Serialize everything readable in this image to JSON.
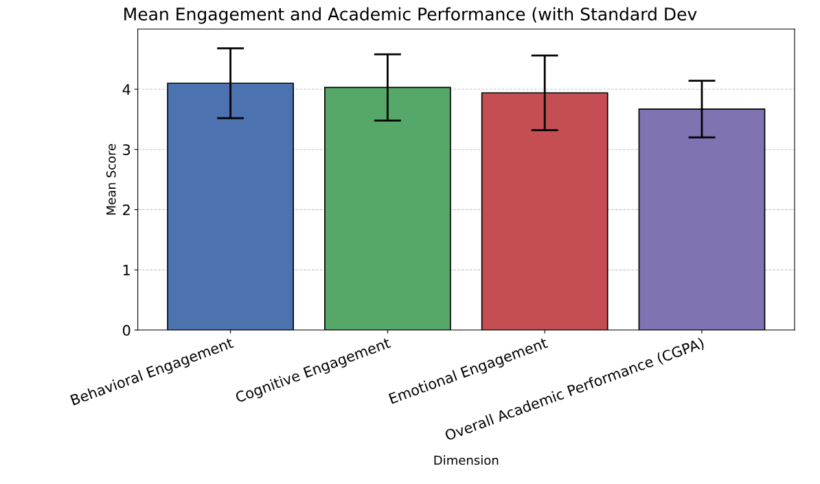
{
  "chart_data": {
    "type": "bar",
    "title": "Mean Engagement and Academic Performance (with Standard Dev",
    "xlabel": "Dimension",
    "ylabel": "Mean Score",
    "categories": [
      "Behavioral Engagement",
      "Cognitive Engagement",
      "Emotional Engagement",
      "Overall Academic Performance (CGPA)"
    ],
    "values": [
      4.1,
      4.03,
      3.94,
      3.67
    ],
    "errors": [
      0.58,
      0.55,
      0.62,
      0.47
    ],
    "colors": [
      "#4c72b0",
      "#55a868",
      "#c44e52",
      "#8172b2"
    ],
    "ylim": [
      0,
      5
    ],
    "yticks": [
      0,
      1,
      2,
      3,
      4
    ],
    "grid": "y"
  }
}
